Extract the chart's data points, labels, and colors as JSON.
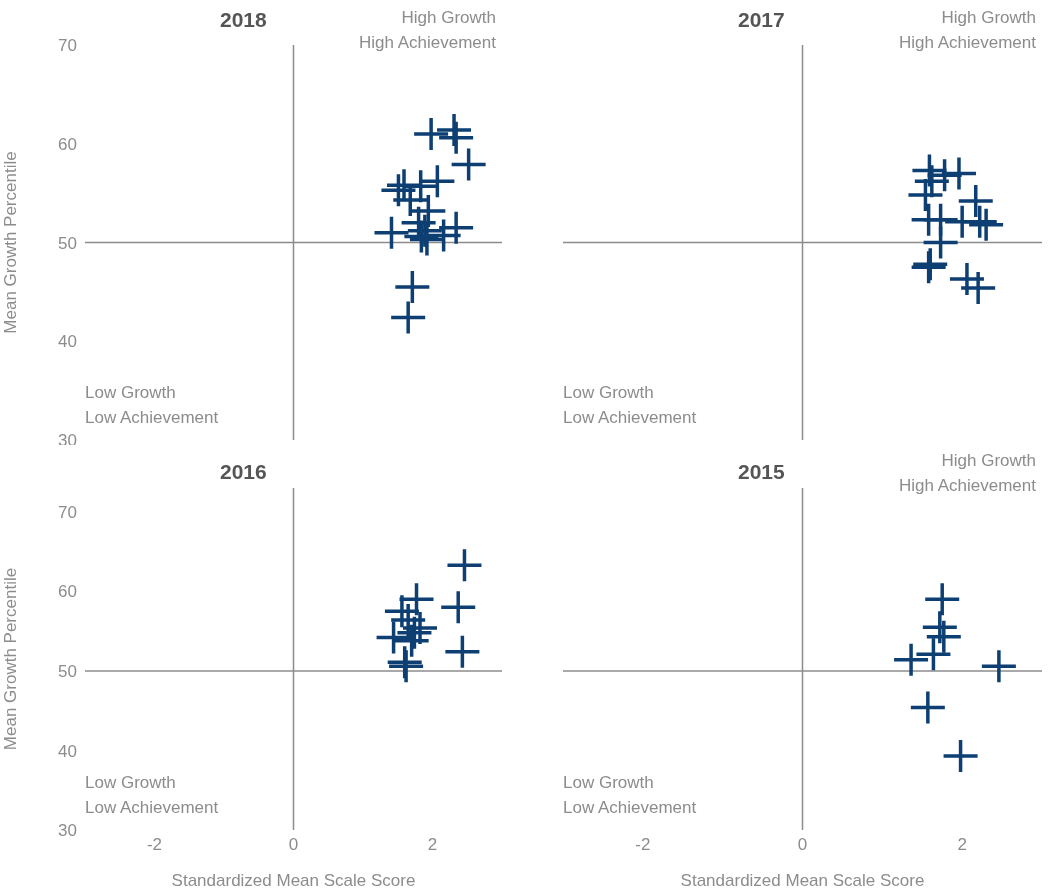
{
  "chart_data": [
    {
      "type": "scatter",
      "title": "2018",
      "ylabel": "Mean Growth Percentile",
      "xlim": [
        -3,
        3
      ],
      "ylim": [
        30,
        70
      ],
      "yticks": [
        30,
        40,
        50,
        60,
        70
      ],
      "tick_labels": "y",
      "marker": "cross",
      "annotations": [
        "High Growth\nHigh Achievement",
        "Low Growth\nLow Achievement"
      ],
      "ref_lines": [
        {
          "axis": "x",
          "value": 0,
          "color": "#8c8c8c"
        },
        {
          "axis": "y",
          "value": 50,
          "color": "#8c8c8c"
        }
      ],
      "series": [
        {
          "color": "#0d3f73",
          "x": [
            1.98,
            2.31,
            2.34,
            2.52,
            2.07,
            1.59,
            1.51,
            1.83,
            1.68,
            1.94,
            1.41,
            2.34,
            1.8,
            1.89,
            2.16,
            1.92,
            1.84,
            1.71,
            1.65
          ],
          "values": [
            61.0,
            61.4,
            60.6,
            57.9,
            56.2,
            55.8,
            55.3,
            55.7,
            54.3,
            53.2,
            51.0,
            51.5,
            52.0,
            51.2,
            50.7,
            50.3,
            50.6,
            45.5,
            42.4
          ]
        }
      ]
    },
    {
      "type": "scatter",
      "title": "2017",
      "xlim": [
        -3,
        3
      ],
      "ylim": [
        30,
        70
      ],
      "tick_labels": false,
      "marker": "cross",
      "annotations": [
        "High Growth\nHigh Achievement",
        "Low Growth\nLow Achievement"
      ],
      "ref_lines": [
        {
          "axis": "x",
          "value": 0,
          "color": "#8c8c8c"
        },
        {
          "axis": "y",
          "value": 50,
          "color": "#8c8c8c"
        }
      ],
      "series": [
        {
          "color": "#0d3f73",
          "x": [
            1.59,
            1.78,
            1.96,
            1.62,
            1.54,
            2.17,
            1.73,
            2.0,
            2.22,
            2.3,
            1.58,
            1.73,
            1.6,
            1.58,
            2.06,
            2.2
          ],
          "values": [
            57.3,
            56.8,
            57.0,
            56.2,
            54.8,
            54.2,
            52.3,
            52.1,
            52.1,
            51.8,
            52.3,
            50.0,
            47.8,
            47.5,
            46.3,
            45.4
          ]
        }
      ]
    },
    {
      "type": "scatter",
      "title": "2016",
      "xlabel": "Standardized Mean Scale Score",
      "ylabel": "Mean Growth Percentile",
      "xlim": [
        -3,
        3
      ],
      "xticks": [
        -2,
        0,
        2
      ],
      "ylim": [
        30,
        73
      ],
      "yticks": [
        30,
        40,
        50,
        60,
        70
      ],
      "marker": "cross",
      "annotations": [
        "Low Growth\nLow Achievement"
      ],
      "ref_lines": [
        {
          "axis": "x",
          "value": 0,
          "color": "#8c8c8c"
        },
        {
          "axis": "y",
          "value": 50,
          "color": "#8c8c8c"
        }
      ],
      "series": [
        {
          "color": "#0d3f73",
          "x": [
            2.46,
            2.37,
            2.43,
            1.77,
            1.56,
            1.65,
            1.82,
            1.74,
            1.44,
            1.7,
            1.6,
            1.62
          ],
          "values": [
            63.3,
            58.0,
            52.4,
            59.0,
            57.5,
            56.4,
            55.4,
            54.8,
            54.2,
            53.8,
            51.1,
            50.6
          ]
        }
      ]
    },
    {
      "type": "scatter",
      "title": "2015",
      "xlabel": "Standardized Mean Scale Score",
      "xlim": [
        -3,
        3
      ],
      "xticks": [
        -2,
        0,
        2
      ],
      "ylim": [
        30,
        73
      ],
      "tick_labels": "x",
      "marker": "cross",
      "annotations": [
        "High Growth\nHigh Achievement",
        "Low Growth\nLow Achievement"
      ],
      "ref_lines": [
        {
          "axis": "x",
          "value": 0,
          "color": "#8c8c8c"
        },
        {
          "axis": "y",
          "value": 50,
          "color": "#8c8c8c"
        }
      ],
      "series": [
        {
          "color": "#0d3f73",
          "x": [
            1.75,
            1.72,
            1.77,
            1.64,
            1.36,
            2.46,
            1.57,
            1.98
          ],
          "values": [
            59.0,
            55.5,
            54.3,
            52.1,
            51.4,
            50.6,
            45.4,
            39.3
          ]
        }
      ]
    }
  ]
}
